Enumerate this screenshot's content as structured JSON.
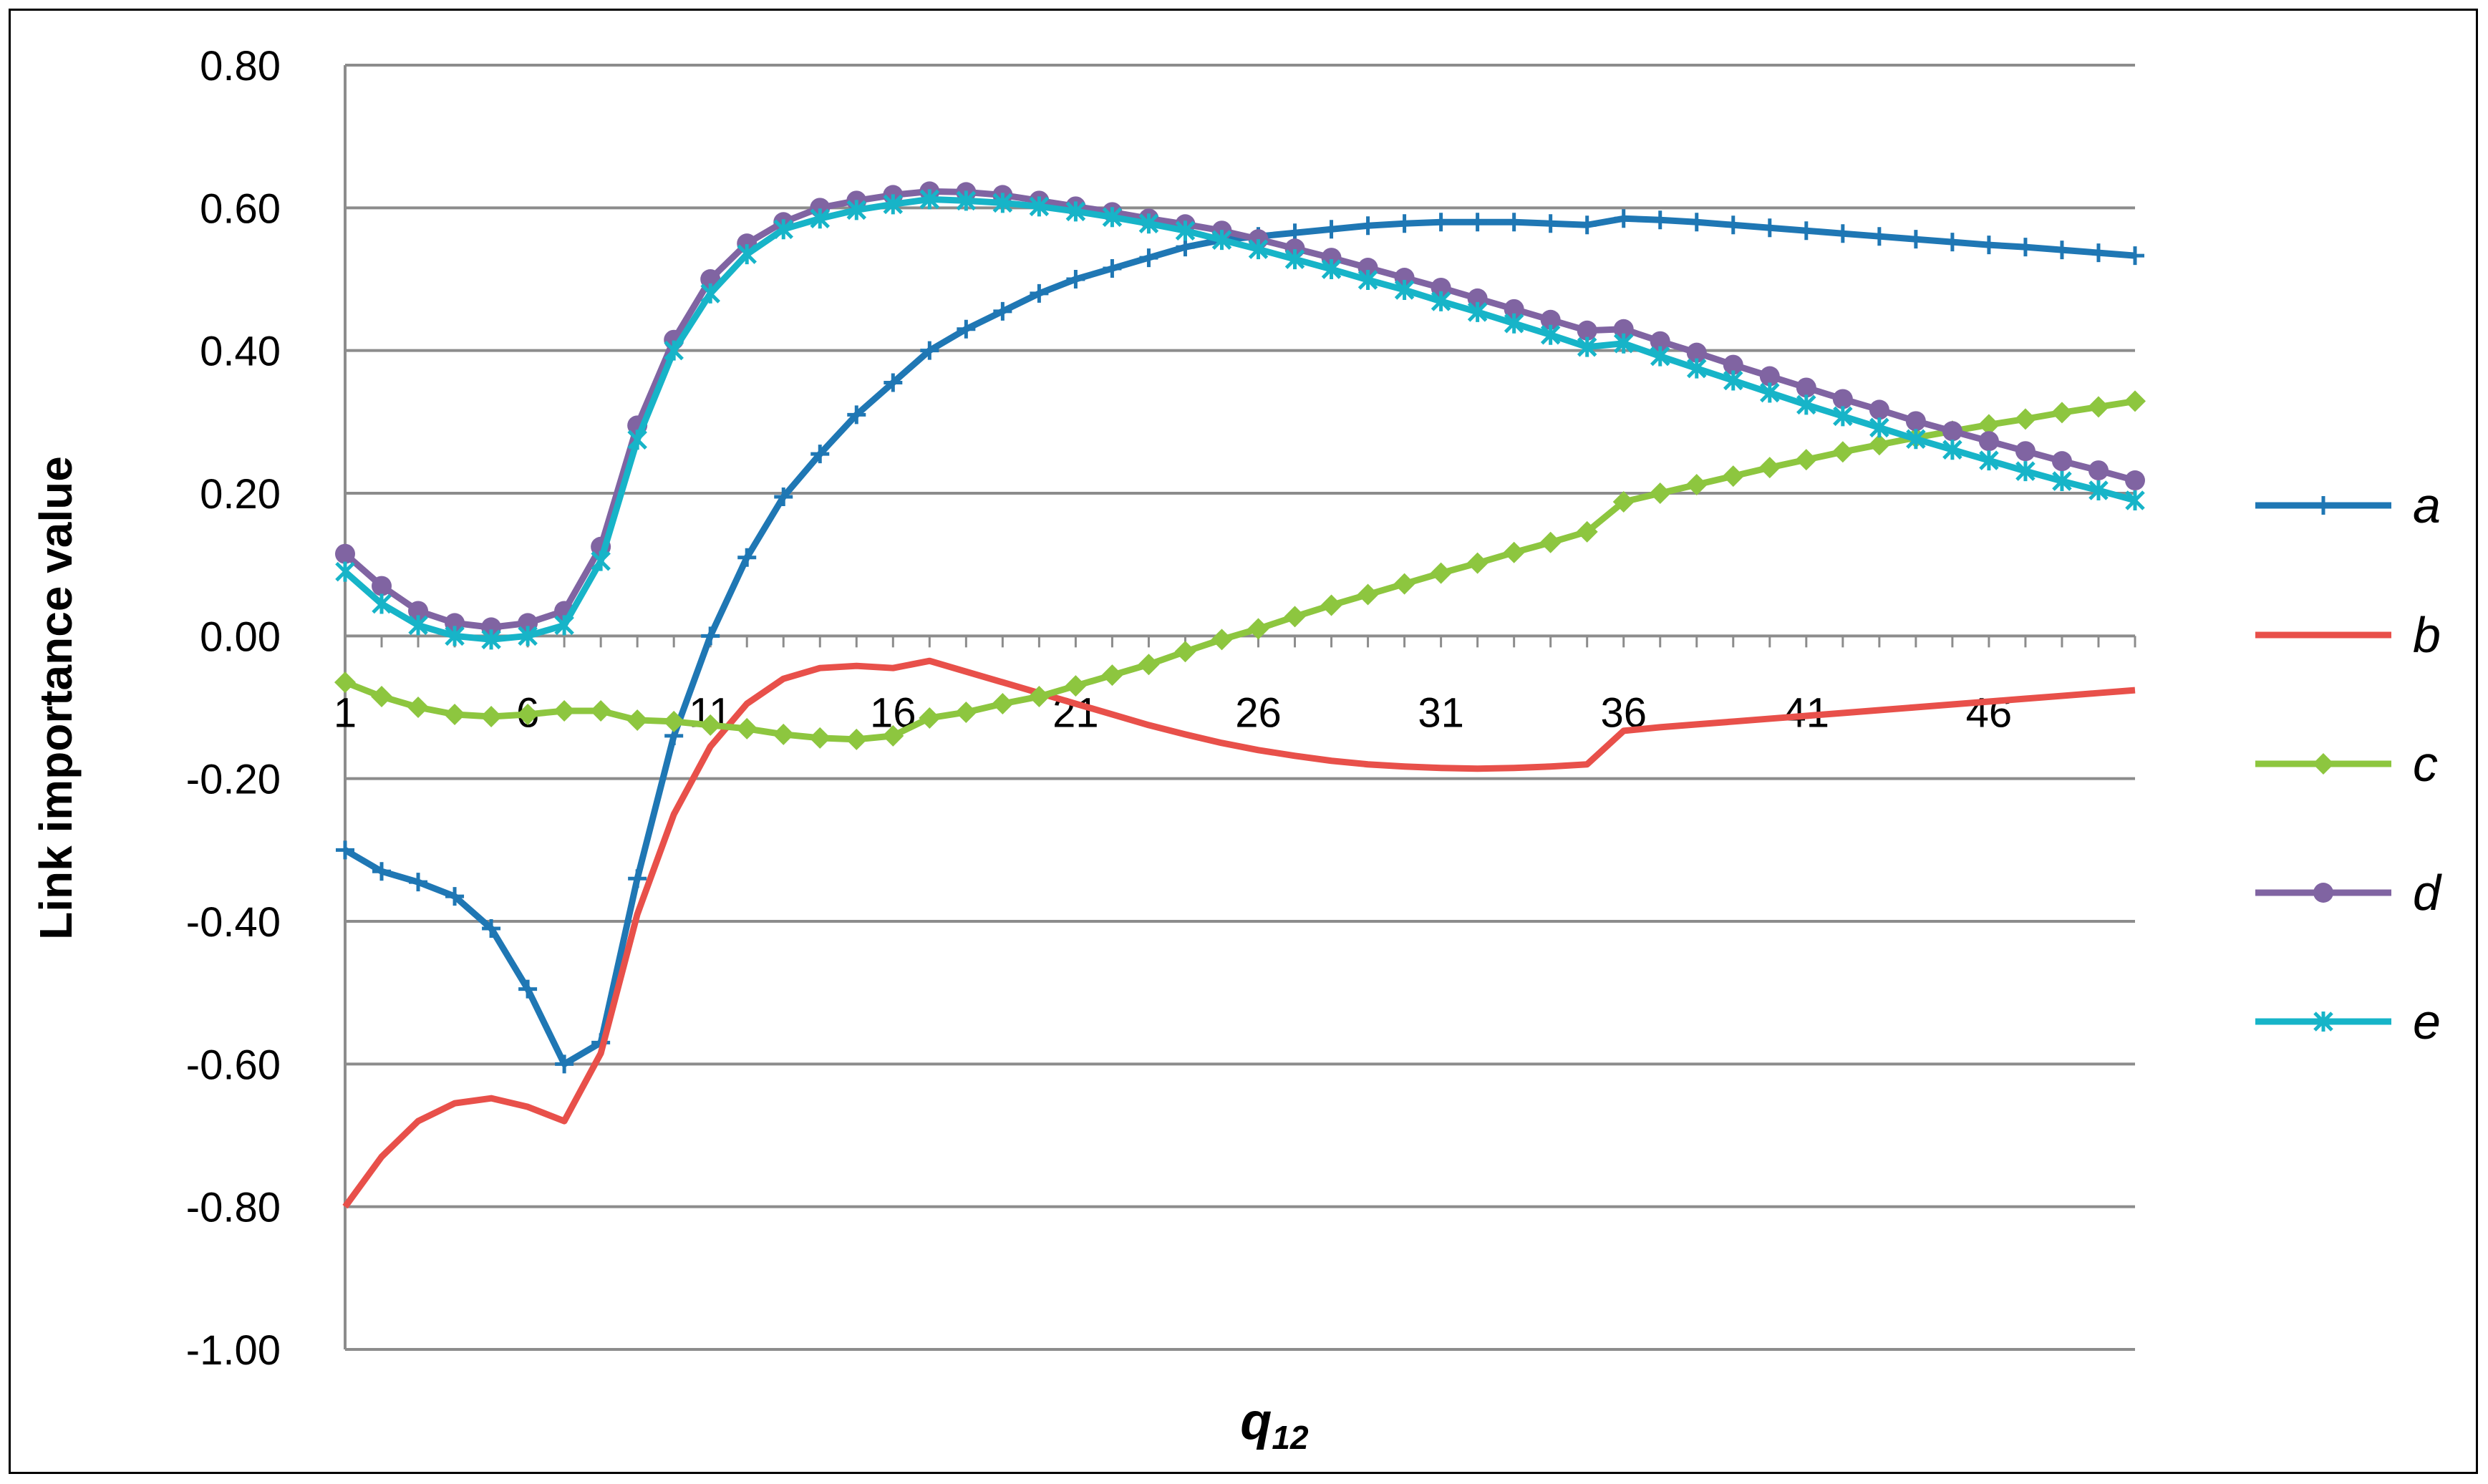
{
  "chart_data": {
    "type": "line",
    "xlabel": "q",
    "xlabel_sub": "12",
    "ylabel": "Link  importance value",
    "ylim": [
      -1.0,
      0.8
    ],
    "yticks": [
      -1.0,
      -0.8,
      -0.6,
      -0.4,
      -0.2,
      0.0,
      0.2,
      0.4,
      0.6,
      0.8
    ],
    "ytick_labels": [
      "-1.00",
      "-0.80",
      "-0.60",
      "-0.40",
      "-0.20",
      "0.00",
      "0.20",
      "0.40",
      "0.60",
      "0.80"
    ],
    "xlim": [
      1,
      50
    ],
    "xticks": [
      1,
      6,
      11,
      16,
      21,
      26,
      31,
      36,
      41,
      46
    ],
    "xtick_labels": [
      "1",
      "6",
      "11",
      "16",
      "21",
      "26",
      "31",
      "36",
      "41",
      "46"
    ],
    "grid": "horizontal",
    "legend_position": "right",
    "series": [
      {
        "name": "a",
        "color": "#1f77b4",
        "marker": "plus",
        "values": [
          -0.3,
          -0.33,
          -0.345,
          -0.365,
          -0.41,
          -0.495,
          -0.6,
          -0.57,
          -0.34,
          -0.14,
          0.0,
          0.11,
          0.195,
          0.255,
          0.31,
          0.355,
          0.4,
          0.43,
          0.455,
          0.48,
          0.5,
          0.515,
          0.53,
          0.545,
          0.555,
          0.56,
          0.565,
          0.57,
          0.575,
          0.578,
          0.58,
          0.58,
          0.58,
          0.578,
          0.576,
          0.585,
          0.583,
          0.58,
          0.576,
          0.572,
          0.568,
          0.564,
          0.56,
          0.556,
          0.552,
          0.548,
          0.545,
          0.541,
          0.537,
          0.533
        ]
      },
      {
        "name": "b",
        "color": "#e8504a",
        "marker": "none",
        "values": [
          -0.8,
          -0.73,
          -0.68,
          -0.655,
          -0.648,
          -0.66,
          -0.68,
          -0.585,
          -0.39,
          -0.25,
          -0.155,
          -0.095,
          -0.06,
          -0.045,
          -0.042,
          -0.045,
          -0.035,
          -0.05,
          -0.065,
          -0.08,
          -0.095,
          -0.11,
          -0.125,
          -0.138,
          -0.15,
          -0.16,
          -0.168,
          -0.175,
          -0.18,
          -0.183,
          -0.185,
          -0.186,
          -0.185,
          -0.183,
          -0.18,
          -0.133,
          -0.128,
          -0.124,
          -0.12,
          -0.116,
          -0.112,
          -0.108,
          -0.104,
          -0.1,
          -0.096,
          -0.092,
          -0.088,
          -0.084,
          -0.08,
          -0.076
        ]
      },
      {
        "name": "c",
        "color": "#8dc63f",
        "marker": "diamond",
        "values": [
          -0.065,
          -0.085,
          -0.1,
          -0.11,
          -0.113,
          -0.11,
          -0.105,
          -0.105,
          -0.118,
          -0.12,
          -0.125,
          -0.13,
          -0.138,
          -0.143,
          -0.145,
          -0.14,
          -0.115,
          -0.107,
          -0.095,
          -0.085,
          -0.07,
          -0.055,
          -0.04,
          -0.022,
          -0.005,
          0.01,
          0.027,
          0.043,
          0.058,
          0.073,
          0.088,
          0.102,
          0.117,
          0.131,
          0.146,
          0.188,
          0.2,
          0.212,
          0.224,
          0.236,
          0.247,
          0.258,
          0.268,
          0.278,
          0.287,
          0.296,
          0.304,
          0.313,
          0.321,
          0.329
        ]
      },
      {
        "name": "d",
        "color": "#8064a2",
        "marker": "circle",
        "values": [
          0.115,
          0.07,
          0.035,
          0.018,
          0.012,
          0.018,
          0.035,
          0.125,
          0.295,
          0.415,
          0.5,
          0.55,
          0.58,
          0.6,
          0.61,
          0.618,
          0.623,
          0.622,
          0.618,
          0.61,
          0.602,
          0.594,
          0.585,
          0.577,
          0.568,
          0.556,
          0.543,
          0.53,
          0.516,
          0.502,
          0.488,
          0.473,
          0.458,
          0.443,
          0.428,
          0.43,
          0.413,
          0.397,
          0.38,
          0.364,
          0.348,
          0.332,
          0.317,
          0.301,
          0.287,
          0.273,
          0.259,
          0.245,
          0.232,
          0.218
        ]
      },
      {
        "name": "e",
        "color": "#17b4c8",
        "marker": "star",
        "values": [
          0.09,
          0.045,
          0.015,
          0.0,
          -0.005,
          0.0,
          0.015,
          0.105,
          0.275,
          0.4,
          0.48,
          0.535,
          0.57,
          0.585,
          0.597,
          0.605,
          0.612,
          0.61,
          0.607,
          0.602,
          0.595,
          0.587,
          0.578,
          0.568,
          0.555,
          0.542,
          0.528,
          0.514,
          0.499,
          0.485,
          0.469,
          0.454,
          0.438,
          0.422,
          0.405,
          0.41,
          0.392,
          0.375,
          0.358,
          0.341,
          0.324,
          0.308,
          0.292,
          0.276,
          0.261,
          0.246,
          0.231,
          0.217,
          0.204,
          0.19
        ]
      }
    ]
  }
}
